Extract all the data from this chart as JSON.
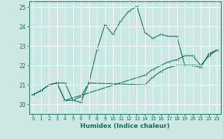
{
  "xlabel": "Humidex (Indice chaleur)",
  "ylabel": "",
  "xlim": [
    -0.5,
    23.5
  ],
  "ylim": [
    19.5,
    25.3
  ],
  "yticks": [
    20,
    21,
    22,
    23,
    24,
    25
  ],
  "xticks": [
    0,
    1,
    2,
    3,
    4,
    5,
    6,
    7,
    8,
    9,
    10,
    11,
    12,
    13,
    14,
    15,
    16,
    17,
    18,
    19,
    20,
    21,
    22,
    23
  ],
  "bg_color": "#cce8e4",
  "line_color": "#1a6b5a",
  "grid_color": "#ffffff",
  "lines": [
    {
      "x": [
        0,
        1,
        2,
        3,
        4,
        5,
        6,
        7,
        8,
        9,
        10,
        11,
        12,
        13,
        14,
        15,
        16,
        17,
        18,
        19,
        20,
        21,
        22,
        23
      ],
      "y": [
        20.5,
        20.7,
        21.0,
        21.1,
        21.1,
        20.2,
        20.1,
        21.1,
        22.8,
        24.1,
        23.6,
        24.3,
        24.8,
        25.05,
        23.7,
        23.4,
        23.6,
        23.5,
        23.5,
        22.0,
        22.0,
        21.9,
        22.6,
        22.8
      ]
    },
    {
      "x": [
        0,
        1,
        2,
        3,
        4,
        5,
        6,
        7,
        14,
        15,
        16,
        17,
        18,
        19,
        20,
        21,
        22,
        23
      ],
      "y": [
        20.5,
        20.7,
        21.0,
        21.1,
        20.2,
        20.2,
        20.4,
        21.1,
        21.0,
        21.4,
        21.7,
        21.9,
        22.0,
        22.0,
        22.0,
        22.0,
        22.5,
        22.8
      ]
    },
    {
      "x": [
        0,
        1,
        2,
        3,
        4,
        14,
        15,
        16,
        17,
        18,
        19,
        20,
        21,
        22,
        23
      ],
      "y": [
        20.5,
        20.7,
        21.0,
        21.1,
        20.2,
        21.5,
        21.8,
        22.0,
        22.2,
        22.3,
        22.5,
        22.5,
        22.0,
        22.5,
        22.8
      ]
    }
  ]
}
